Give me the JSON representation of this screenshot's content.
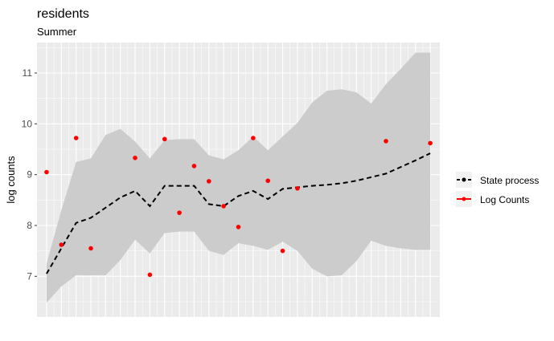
{
  "chart_data": {
    "type": "line",
    "title": "residents",
    "subtitle": "Summer",
    "xlabel": "",
    "ylabel": "log counts",
    "ylim": [
      6.2,
      11.6
    ],
    "yticks": [
      "7",
      "8",
      "9",
      "10",
      "11"
    ],
    "grid": true,
    "legend_position": "right",
    "x": [
      1,
      2,
      3,
      4,
      5,
      6,
      7,
      8,
      9,
      10,
      11,
      12,
      13,
      14,
      15,
      16,
      17,
      18,
      19,
      20,
      21,
      22,
      23,
      24,
      25,
      26,
      27
    ],
    "series": [
      {
        "name": "State process",
        "line": "dashed",
        "color": "#000000",
        "values": [
          7.05,
          7.55,
          8.05,
          8.15,
          8.35,
          8.55,
          8.68,
          8.38,
          8.78,
          8.78,
          8.78,
          8.42,
          8.38,
          8.58,
          8.68,
          8.52,
          8.72,
          8.75,
          8.78,
          8.8,
          8.83,
          8.88,
          8.95,
          9.02,
          9.15,
          9.28,
          9.42
        ],
        "band_low": [
          6.48,
          6.8,
          7.02,
          7.02,
          7.02,
          7.32,
          7.72,
          7.45,
          7.85,
          7.88,
          7.88,
          7.5,
          7.42,
          7.65,
          7.6,
          7.52,
          7.68,
          7.5,
          7.15,
          7.0,
          7.02,
          7.3,
          7.7,
          7.6,
          7.55,
          7.52,
          7.52
        ],
        "band_high": [
          7.25,
          8.3,
          9.25,
          9.32,
          9.78,
          9.9,
          9.65,
          9.32,
          9.68,
          9.7,
          9.7,
          9.38,
          9.3,
          9.48,
          9.75,
          9.48,
          9.75,
          10.02,
          10.42,
          10.65,
          10.68,
          10.62,
          10.4,
          10.78,
          11.08,
          11.4,
          11.4
        ]
      },
      {
        "name": "Log Counts",
        "color": "#ff0000",
        "points": [
          {
            "x": 1,
            "y": 9.05
          },
          {
            "x": 2,
            "y": 7.62
          },
          {
            "x": 3,
            "y": 9.72
          },
          {
            "x": 4,
            "y": 7.55
          },
          {
            "x": 7,
            "y": 9.33
          },
          {
            "x": 8,
            "y": 7.03
          },
          {
            "x": 9,
            "y": 9.7
          },
          {
            "x": 10,
            "y": 8.25
          },
          {
            "x": 11,
            "y": 9.17
          },
          {
            "x": 12,
            "y": 8.87
          },
          {
            "x": 13,
            "y": 8.38
          },
          {
            "x": 14,
            "y": 7.97
          },
          {
            "x": 15,
            "y": 9.72
          },
          {
            "x": 16,
            "y": 8.88
          },
          {
            "x": 17,
            "y": 7.5
          },
          {
            "x": 18,
            "y": 8.73
          },
          {
            "x": 24,
            "y": 9.66
          },
          {
            "x": 27,
            "y": 9.62
          }
        ]
      }
    ]
  }
}
